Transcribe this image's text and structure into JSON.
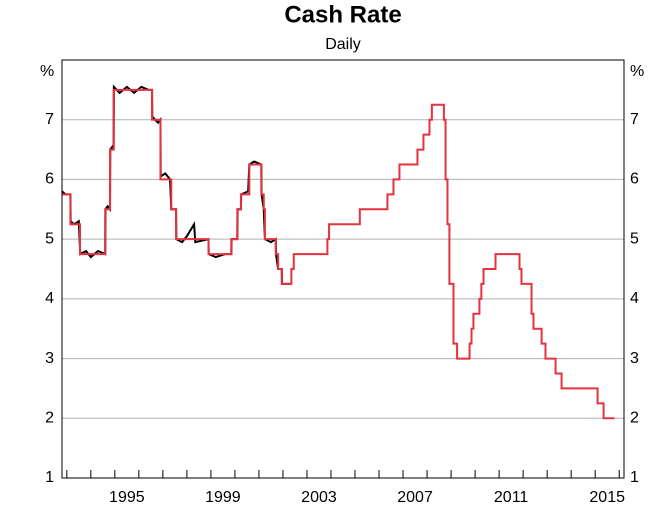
{
  "chart_data": {
    "type": "line",
    "title": "Cash Rate",
    "subtitle": "Daily",
    "ylabel": "%",
    "xlim": [
      1992.8,
      2016.2
    ],
    "ylim": [
      1,
      8
    ],
    "yticks": [
      1,
      2,
      3,
      4,
      5,
      6,
      7
    ],
    "xticks": [
      {
        "value": 1995.5,
        "label": "1995"
      },
      {
        "value": 1999.5,
        "label": "1999"
      },
      {
        "value": 2003.5,
        "label": "2003"
      },
      {
        "value": 2007.5,
        "label": "2007"
      },
      {
        "value": 2011.5,
        "label": "2011"
      },
      {
        "value": 2015.5,
        "label": "2015"
      }
    ],
    "xminorticks": [
      1993,
      1994,
      1995,
      1996,
      1997,
      1998,
      1999,
      2000,
      2001,
      2002,
      2003,
      2004,
      2005,
      2006,
      2007,
      2008,
      2009,
      2010,
      2011,
      2012,
      2013,
      2014,
      2015,
      2016
    ],
    "grid": true,
    "series": [
      {
        "color": "#000000",
        "x": [
          1992.8,
          1992.95,
          1993.15,
          1993.16,
          1993.3,
          1993.5,
          1993.56,
          1993.8,
          1994.0,
          1994.3,
          1994.6,
          1994.61,
          1994.7,
          1994.8,
          1994.81,
          1994.9,
          1994.95,
          1994.96,
          1995.2,
          1995.5,
          1995.8,
          1996.1,
          1996.4,
          1996.55,
          1996.56,
          1996.8,
          1996.9,
          1996.91,
          1997.1,
          1997.3,
          1997.35,
          1997.55,
          1997.56,
          1997.8,
          1998.0,
          1998.3,
          1998.35,
          1998.9,
          1998.91,
          1999.2,
          1999.6,
          1999.85,
          1999.86,
          2000.1,
          2000.11,
          2000.25,
          2000.26,
          2000.55,
          2000.6,
          2000.8,
          2001.1,
          2001.11,
          2001.2,
          2001.25,
          2001.5,
          2001.7,
          2001.71,
          2001.8,
          2001.95,
          2001.96,
          2002.3
        ],
        "values": [
          5.8,
          5.75,
          5.75,
          5.3,
          5.25,
          5.3,
          4.75,
          4.8,
          4.7,
          4.8,
          4.75,
          5.5,
          5.55,
          5.5,
          6.5,
          6.55,
          6.5,
          7.55,
          7.45,
          7.55,
          7.45,
          7.55,
          7.5,
          7.5,
          7.05,
          6.95,
          7.0,
          6.05,
          6.1,
          6.0,
          5.5,
          5.5,
          5.0,
          4.95,
          5.05,
          5.25,
          4.95,
          5.0,
          4.75,
          4.7,
          4.75,
          4.75,
          5.0,
          5.0,
          5.5,
          5.5,
          5.75,
          5.8,
          6.25,
          6.3,
          6.25,
          5.75,
          5.5,
          5.0,
          4.95,
          5.0,
          4.75,
          4.5,
          4.5,
          4.25,
          4.25
        ]
      },
      {
        "color": "#e5323f",
        "x": [
          1992.8,
          1993.15,
          1993.15,
          1993.55,
          1993.55,
          1994.6,
          1994.6,
          1994.8,
          1994.8,
          1994.95,
          1994.95,
          1996.55,
          1996.55,
          1996.9,
          1996.9,
          1997.35,
          1997.35,
          1997.55,
          1997.55,
          1998.9,
          1998.9,
          1999.85,
          1999.85,
          2000.1,
          2000.1,
          2000.25,
          2000.25,
          2000.6,
          2000.6,
          2001.1,
          2001.1,
          2001.2,
          2001.2,
          2001.25,
          2001.25,
          2001.7,
          2001.7,
          2001.8,
          2001.8,
          2001.95,
          2001.95,
          2002.35,
          2002.35,
          2002.45,
          2002.45,
          2003.85,
          2003.85,
          2003.92,
          2003.92,
          2005.2,
          2005.2,
          2006.35,
          2006.35,
          2006.6,
          2006.6,
          2006.85,
          2006.85,
          2007.6,
          2007.6,
          2007.85,
          2007.85,
          2008.1,
          2008.1,
          2008.2,
          2008.2,
          2008.7,
          2008.7,
          2008.77,
          2008.77,
          2008.85,
          2008.85,
          2008.93,
          2008.93,
          2009.1,
          2009.1,
          2009.25,
          2009.25,
          2009.77,
          2009.77,
          2009.85,
          2009.85,
          2009.93,
          2009.93,
          2010.18,
          2010.18,
          2010.26,
          2010.26,
          2010.35,
          2010.35,
          2010.85,
          2010.85,
          2011.85,
          2011.85,
          2011.93,
          2011.93,
          2012.35,
          2012.35,
          2012.43,
          2012.43,
          2012.77,
          2012.77,
          2012.93,
          2012.93,
          2013.35,
          2013.35,
          2013.6,
          2013.6,
          2015.1,
          2015.1,
          2015.35,
          2015.35,
          2015.8
        ],
        "values": [
          5.75,
          5.75,
          5.25,
          5.25,
          4.75,
          4.75,
          5.5,
          5.5,
          6.5,
          6.5,
          7.5,
          7.5,
          7.0,
          7.0,
          6.0,
          6.0,
          5.5,
          5.5,
          5.0,
          5.0,
          4.75,
          4.75,
          5.0,
          5.0,
          5.5,
          5.5,
          5.75,
          5.75,
          6.25,
          6.25,
          5.75,
          5.75,
          5.5,
          5.5,
          5.0,
          5.0,
          4.75,
          4.75,
          4.5,
          4.5,
          4.25,
          4.25,
          4.5,
          4.5,
          4.75,
          4.75,
          5.0,
          5.0,
          5.25,
          5.25,
          5.5,
          5.5,
          5.75,
          5.75,
          6.0,
          6.0,
          6.25,
          6.25,
          6.5,
          6.5,
          6.75,
          6.75,
          7.0,
          7.0,
          7.25,
          7.25,
          7.0,
          7.0,
          6.0,
          6.0,
          5.25,
          5.25,
          4.25,
          4.25,
          3.25,
          3.25,
          3.0,
          3.0,
          3.25,
          3.25,
          3.5,
          3.5,
          3.75,
          3.75,
          4.0,
          4.0,
          4.25,
          4.25,
          4.5,
          4.5,
          4.75,
          4.75,
          4.5,
          4.5,
          4.25,
          4.25,
          3.75,
          3.75,
          3.5,
          3.5,
          3.25,
          3.25,
          3.0,
          3.0,
          2.75,
          2.75,
          2.5,
          2.5,
          2.25,
          2.25,
          2.0,
          2.0
        ]
      }
    ]
  }
}
